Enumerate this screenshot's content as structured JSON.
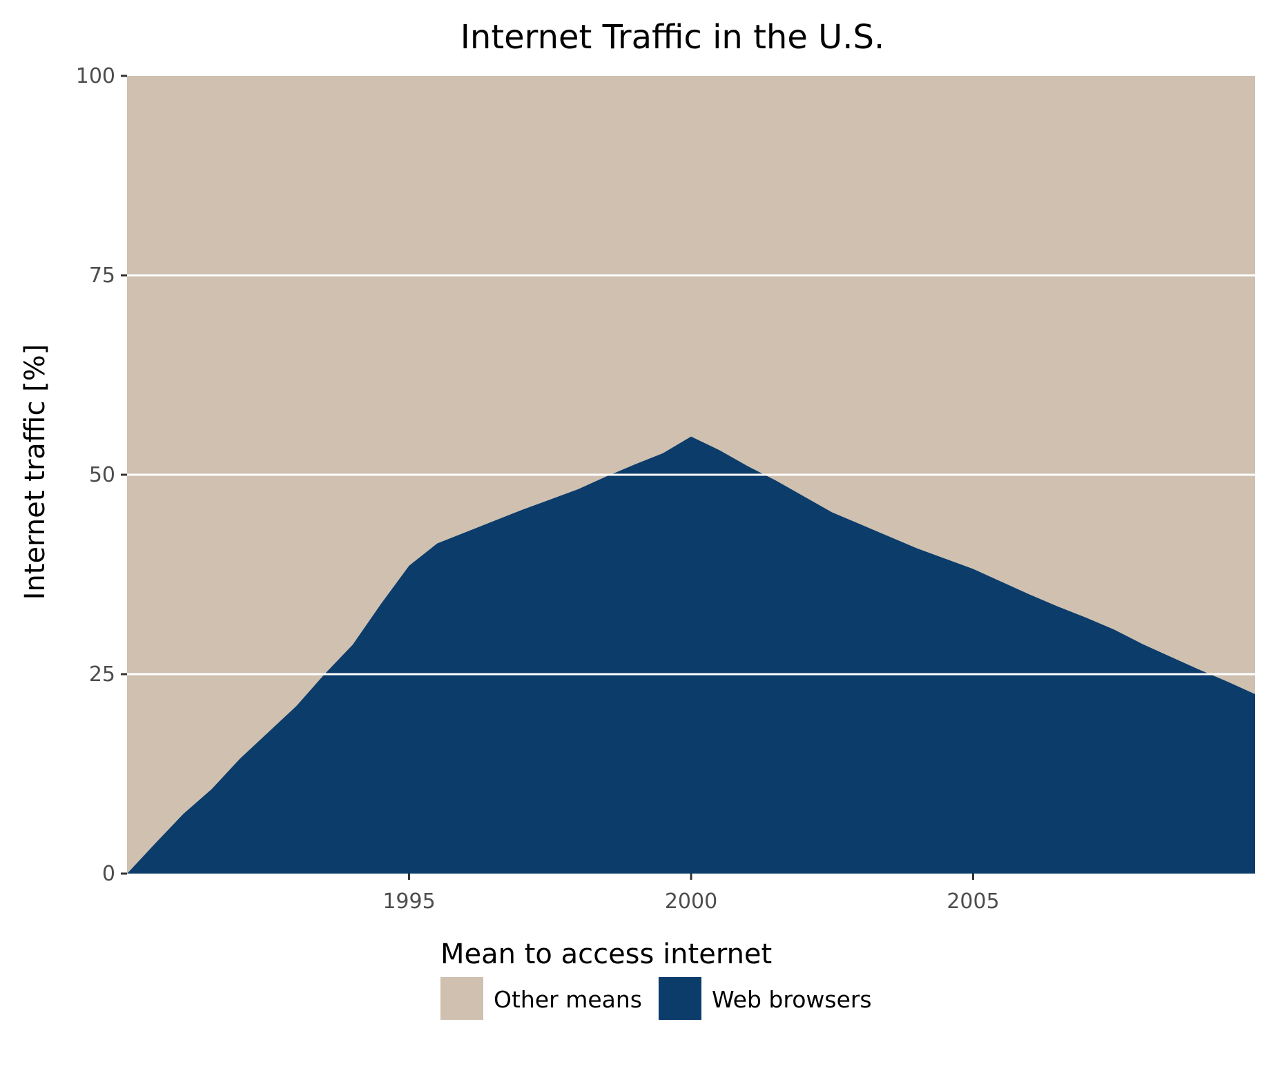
{
  "chart_data": {
    "type": "area",
    "title": "Internet Traffic in the U.S.",
    "xlabel": "",
    "ylabel": "Internet traffic [%]",
    "xlim": [
      1990,
      2010
    ],
    "ylim": [
      0,
      100
    ],
    "x_ticks": [
      "1995",
      "2000",
      "2005"
    ],
    "y_ticks": [
      "0",
      "25",
      "50",
      "75",
      "100"
    ],
    "grid": "horizontal major lines",
    "stacked": true,
    "x": [
      1990,
      1990.5,
      1991,
      1991.5,
      1992,
      1992.5,
      1993,
      1993.5,
      1994,
      1994.5,
      1995,
      1995.5,
      1996,
      1996.5,
      1997,
      1997.5,
      1998,
      1998.5,
      1999,
      1999.5,
      2000,
      2000.5,
      2001,
      2001.5,
      2002,
      2002.5,
      2003,
      2003.5,
      2004,
      2004.5,
      2005,
      2005.5,
      2006,
      2006.5,
      2007,
      2007.5,
      2008,
      2008.5,
      2009,
      2009.5,
      2010
    ],
    "series": [
      {
        "name": "Web browsers",
        "color": "#0c3c6a",
        "values": [
          0.0,
          3.8,
          7.5,
          10.6,
          14.4,
          17.7,
          21.0,
          25.0,
          28.7,
          33.8,
          38.6,
          41.4,
          42.8,
          44.2,
          45.6,
          46.9,
          48.2,
          49.8,
          51.3,
          52.7,
          54.8,
          53.1,
          51.1,
          49.3,
          47.3,
          45.3,
          43.8,
          42.3,
          40.8,
          39.5,
          38.2,
          36.6,
          35.0,
          33.5,
          32.1,
          30.6,
          28.8,
          27.2,
          25.6,
          24.1,
          22.5
        ]
      },
      {
        "name": "Other means",
        "color": "#cfc0b0",
        "values": [
          100.0,
          96.2,
          92.5,
          89.4,
          85.6,
          82.3,
          79.0,
          75.0,
          71.3,
          66.2,
          61.4,
          58.6,
          57.2,
          55.8,
          54.4,
          53.1,
          51.8,
          50.2,
          48.7,
          47.3,
          45.2,
          46.9,
          48.9,
          50.7,
          52.7,
          54.7,
          56.2,
          57.7,
          59.2,
          60.5,
          61.8,
          63.4,
          65.0,
          66.5,
          67.9,
          69.4,
          71.2,
          72.8,
          74.4,
          75.9,
          77.5
        ]
      }
    ],
    "legend": {
      "title": "Mean to access internet",
      "position": "bottom",
      "entries": [
        {
          "label": "Other means",
          "color": "#cfc0b0"
        },
        {
          "label": "Web browsers",
          "color": "#0c3c6a"
        }
      ]
    }
  }
}
